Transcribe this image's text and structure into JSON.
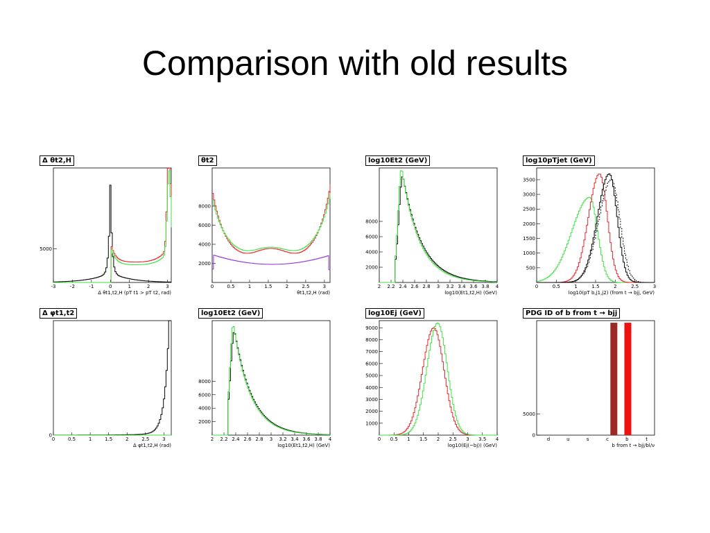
{
  "title": "Comparison with old results",
  "colors": {
    "black": "#000000",
    "red": "#e8212a",
    "green": "#3ee040",
    "violet": "#9a2fd8",
    "darkred": "#9b2a24",
    "brightred": "#ee1111"
  },
  "chart_data": [
    {
      "type": "line",
      "title": "Δ θt2,H",
      "xlabel": "Δ θt1,t2,H (pT t1 > pT t2, rad)",
      "xlim": [
        -3,
        3.2
      ],
      "ylim": [
        0,
        17000
      ],
      "xticks": [
        "-3",
        "-2",
        "-1",
        "0",
        "1",
        "2",
        "3"
      ],
      "yticks": [
        {
          "v": 5000,
          "label": "5000"
        }
      ],
      "series": [
        {
          "name": "",
          "color": "black",
          "kind": "curve",
          "fn": "dtheta_black"
        },
        {
          "name": "",
          "color": "red",
          "kind": "curve",
          "fn": "dtheta_red"
        },
        {
          "name": "",
          "color": "green",
          "kind": "curve",
          "fn": "dtheta_green"
        }
      ]
    },
    {
      "type": "line",
      "title": "θt2",
      "xlabel": "θt1,t2,H (rad)",
      "xlim": [
        0,
        3.15
      ],
      "ylim": [
        0,
        12000
      ],
      "xticks": [
        "0",
        "0.5",
        "1",
        "1.5",
        "2",
        "2.5",
        "3"
      ],
      "yticks": [
        {
          "v": 2000,
          "label": "2000"
        },
        {
          "v": 4000,
          "label": "4000"
        },
        {
          "v": 6000,
          "label": "6000"
        },
        {
          "v": 8000,
          "label": "8000"
        }
      ],
      "series": [
        {
          "name": "",
          "color": "red",
          "kind": "curve",
          "fn": "theta_red"
        },
        {
          "name": "",
          "color": "green",
          "kind": "curve",
          "fn": "theta_green"
        },
        {
          "name": "",
          "color": "violet",
          "kind": "curve",
          "fn": "theta_violet"
        }
      ]
    },
    {
      "type": "line",
      "title": "log10Et2 (GeV)",
      "xlabel": "log10(Et1,t2,H) (GeV)",
      "xlim": [
        2,
        4
      ],
      "ylim": [
        0,
        15000
      ],
      "xticks": [
        "2",
        "2.2",
        "2.4",
        "2.6",
        "2.8",
        "3",
        "3.2",
        "3.4",
        "3.6",
        "3.8",
        "4"
      ],
      "yticks": [
        {
          "v": 2000,
          "label": "2000"
        },
        {
          "v": 4000,
          "label": "4000"
        },
        {
          "v": 6000,
          "label": "6000"
        },
        {
          "v": 8000,
          "label": "8000"
        }
      ],
      "series": [
        {
          "name": "",
          "color": "black",
          "kind": "curve",
          "fn": "e_black"
        },
        {
          "name": "",
          "color": "green",
          "kind": "curve",
          "fn": "e_green"
        }
      ]
    },
    {
      "type": "line",
      "title": "log10pTjet (GeV)",
      "xlabel": "log10(pT b,j1,j2) (from t → bjj, GeV)",
      "xlim": [
        0,
        3
      ],
      "ylim": [
        0,
        3900
      ],
      "xticks": [
        "0",
        "0.5",
        "1",
        "1.5",
        "2",
        "2.5",
        "3"
      ],
      "yticks": [
        {
          "v": 500,
          "label": "500"
        },
        {
          "v": 1000,
          "label": "1000"
        },
        {
          "v": 1500,
          "label": "1500"
        },
        {
          "v": 2000,
          "label": "2000"
        },
        {
          "v": 2500,
          "label": "2500"
        },
        {
          "v": 3000,
          "label": "3000"
        },
        {
          "v": 3500,
          "label": "3500"
        }
      ],
      "series": [
        {
          "name": "",
          "color": "green",
          "kind": "curve",
          "fn": "pt_green"
        },
        {
          "name": "",
          "color": "red",
          "kind": "curve",
          "fn": "pt_red"
        },
        {
          "name": "",
          "color": "black",
          "kind": "curve",
          "fn": "pt_black"
        },
        {
          "name": "",
          "color": "black",
          "kind": "dashed",
          "fn": "pt_dash"
        }
      ]
    },
    {
      "type": "line",
      "title": "Δ φt1,t2",
      "xlabel": "Δ φt1,t2,H (rad)",
      "xlim": [
        0,
        3.2
      ],
      "ylim": [
        0,
        18000
      ],
      "xticks": [
        "0",
        "0.5",
        "1",
        "1.5",
        "2",
        "2.5",
        "3"
      ],
      "yticks": [
        {
          "v": 0,
          "label": "0"
        }
      ],
      "series": [
        {
          "name": "",
          "color": "black",
          "kind": "curve",
          "fn": "dphi_black"
        },
        {
          "name": "",
          "color": "green",
          "kind": "flat",
          "fn": "zero"
        }
      ]
    },
    {
      "type": "line",
      "title": "log10Et2 (GeV)",
      "xlabel": "log10(Et1,t2,H) (GeV)",
      "xlim": [
        2,
        4
      ],
      "ylim": [
        0,
        17000
      ],
      "xticks": [
        "2",
        "2.2",
        "2.4",
        "2.6",
        "2.8",
        "3",
        "3.2",
        "3.4",
        "3.6",
        "3.8",
        "4"
      ],
      "yticks": [
        {
          "v": 2000,
          "label": "2000"
        },
        {
          "v": 4000,
          "label": "4000"
        },
        {
          "v": 6000,
          "label": "6000"
        },
        {
          "v": 8000,
          "label": "8000"
        }
      ],
      "series": [
        {
          "name": "",
          "color": "black",
          "kind": "curve",
          "fn": "e2_black"
        },
        {
          "name": "",
          "color": "green",
          "kind": "curve",
          "fn": "e2_green"
        }
      ]
    },
    {
      "type": "line",
      "title": "log10Ej (GeV)",
      "xlabel": "log10(Ej(~bj)) (GeV)",
      "xlim": [
        0,
        4
      ],
      "ylim": [
        0,
        9600
      ],
      "xticks": [
        "0",
        "0.5",
        "1",
        "1.5",
        "2",
        "2.5",
        "3",
        "3.5",
        "4"
      ],
      "yticks": [
        {
          "v": 1000,
          "label": "1000"
        },
        {
          "v": 2000,
          "label": "2000"
        },
        {
          "v": 3000,
          "label": "3000"
        },
        {
          "v": 4000,
          "label": "4000"
        },
        {
          "v": 5000,
          "label": "5000"
        },
        {
          "v": 6000,
          "label": "6000"
        },
        {
          "v": 7000,
          "label": "7000"
        },
        {
          "v": 8000,
          "label": "8000"
        },
        {
          "v": 9000,
          "label": "9000"
        }
      ],
      "series": [
        {
          "name": "",
          "color": "red",
          "kind": "curve",
          "fn": "ej_red"
        },
        {
          "name": "",
          "color": "green",
          "kind": "curve",
          "fn": "ej_green"
        }
      ]
    },
    {
      "type": "bar",
      "title": "PDG ID of b from t → bjj",
      "xlabel": "b from t → bjj/bl/ν",
      "categories": [
        "d",
        "u",
        "s",
        "c",
        "b",
        "t"
      ],
      "ylim": [
        0,
        27000
      ],
      "yticks": [
        {
          "v": 0,
          "label": "0"
        },
        {
          "v": 5000,
          "label": "5000"
        }
      ],
      "bars": [
        {
          "category": "b̄",
          "value": 26500,
          "color": "darkred"
        },
        {
          "category": "b",
          "value": 26500,
          "color": "brightred"
        }
      ]
    }
  ]
}
